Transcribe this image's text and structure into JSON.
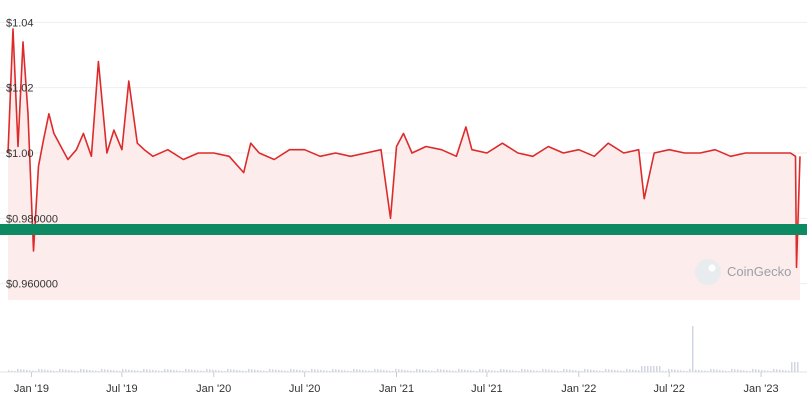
{
  "chart_data": {
    "type": "line",
    "title": "",
    "xlabel": "",
    "ylabel": "",
    "ylim": [
      0.955,
      1.045
    ],
    "xlim": [
      "2018-11-15",
      "2023-03-20"
    ],
    "grid": true,
    "y_tick_values": [
      1.04,
      1.02,
      1.0,
      0.98,
      0.96
    ],
    "y_tick_labels": [
      "$1.04",
      "$1.02",
      "$1.00",
      "$0.980000",
      "$0.960000"
    ],
    "x_tick_values": [
      "2019-01-01",
      "2019-07-01",
      "2020-01-01",
      "2020-07-01",
      "2021-01-01",
      "2021-07-01",
      "2022-01-01",
      "2022-07-01",
      "2023-01-01"
    ],
    "x_tick_labels": [
      "Jan '19",
      "Jul '19",
      "Jan '20",
      "Jul '20",
      "Jan '21",
      "Jul '21",
      "Jan '22",
      "Jul '22",
      "Jan '23"
    ],
    "series": [
      {
        "values_x": [
          "2018-11-15",
          "2018-11-25",
          "2018-12-05",
          "2018-12-15",
          "2018-12-25",
          "2019-01-05",
          "2019-01-15",
          "2019-01-25",
          "2019-02-05",
          "2019-02-15",
          "2019-03-01",
          "2019-03-15",
          "2019-04-01",
          "2019-04-15",
          "2019-05-01",
          "2019-05-15",
          "2019-06-01",
          "2019-06-15",
          "2019-07-01",
          "2019-07-15",
          "2019-08-01",
          "2019-08-15",
          "2019-09-01",
          "2019-10-01",
          "2019-11-01",
          "2019-12-01",
          "2020-01-01",
          "2020-02-01",
          "2020-03-01",
          "2020-03-15",
          "2020-04-01",
          "2020-05-01",
          "2020-06-01",
          "2020-07-01",
          "2020-08-01",
          "2020-09-01",
          "2020-10-01",
          "2020-11-01",
          "2020-12-01",
          "2020-12-20",
          "2021-01-01",
          "2021-01-15",
          "2021-02-01",
          "2021-03-01",
          "2021-04-01",
          "2021-05-01",
          "2021-05-20",
          "2021-06-01",
          "2021-07-01",
          "2021-08-01",
          "2021-09-01",
          "2021-10-01",
          "2021-11-01",
          "2021-12-01",
          "2022-01-01",
          "2022-02-01",
          "2022-03-01",
          "2022-04-01",
          "2022-05-01",
          "2022-05-12",
          "2022-06-01",
          "2022-07-01",
          "2022-08-01",
          "2022-09-01",
          "2022-10-01",
          "2022-11-01",
          "2022-12-01",
          "2023-01-01",
          "2023-02-01",
          "2023-03-01",
          "2023-03-11",
          "2023-03-13",
          "2023-03-20"
        ],
        "values": [
          1.0,
          1.038,
          1.002,
          1.034,
          1.012,
          0.97,
          0.996,
          1.004,
          1.012,
          1.006,
          1.002,
          0.998,
          1.001,
          1.006,
          0.999,
          1.028,
          1.0,
          1.007,
          1.001,
          1.022,
          1.003,
          1.001,
          0.999,
          1.001,
          0.998,
          1.0,
          1.0,
          0.999,
          0.994,
          1.003,
          1.0,
          0.998,
          1.001,
          1.001,
          0.999,
          1.0,
          0.999,
          1.0,
          1.001,
          0.98,
          1.002,
          1.006,
          1.0,
          1.002,
          1.001,
          0.999,
          1.008,
          1.001,
          1.0,
          1.003,
          1.0,
          0.999,
          1.002,
          1.0,
          1.001,
          0.999,
          1.003,
          1.0,
          1.001,
          0.986,
          1.0,
          1.001,
          1.0,
          1.0,
          1.001,
          0.999,
          1.0,
          1.0,
          1.0,
          1.0,
          0.999,
          0.965,
          0.999
        ]
      }
    ]
  },
  "watermark": {
    "text": "CoinGecko"
  },
  "colors": {
    "line": "#dd2b2b",
    "fill": "#fdecec",
    "band": "#0d8a62",
    "grid": "#eeeeee",
    "volume": "#d0d6e2"
  }
}
